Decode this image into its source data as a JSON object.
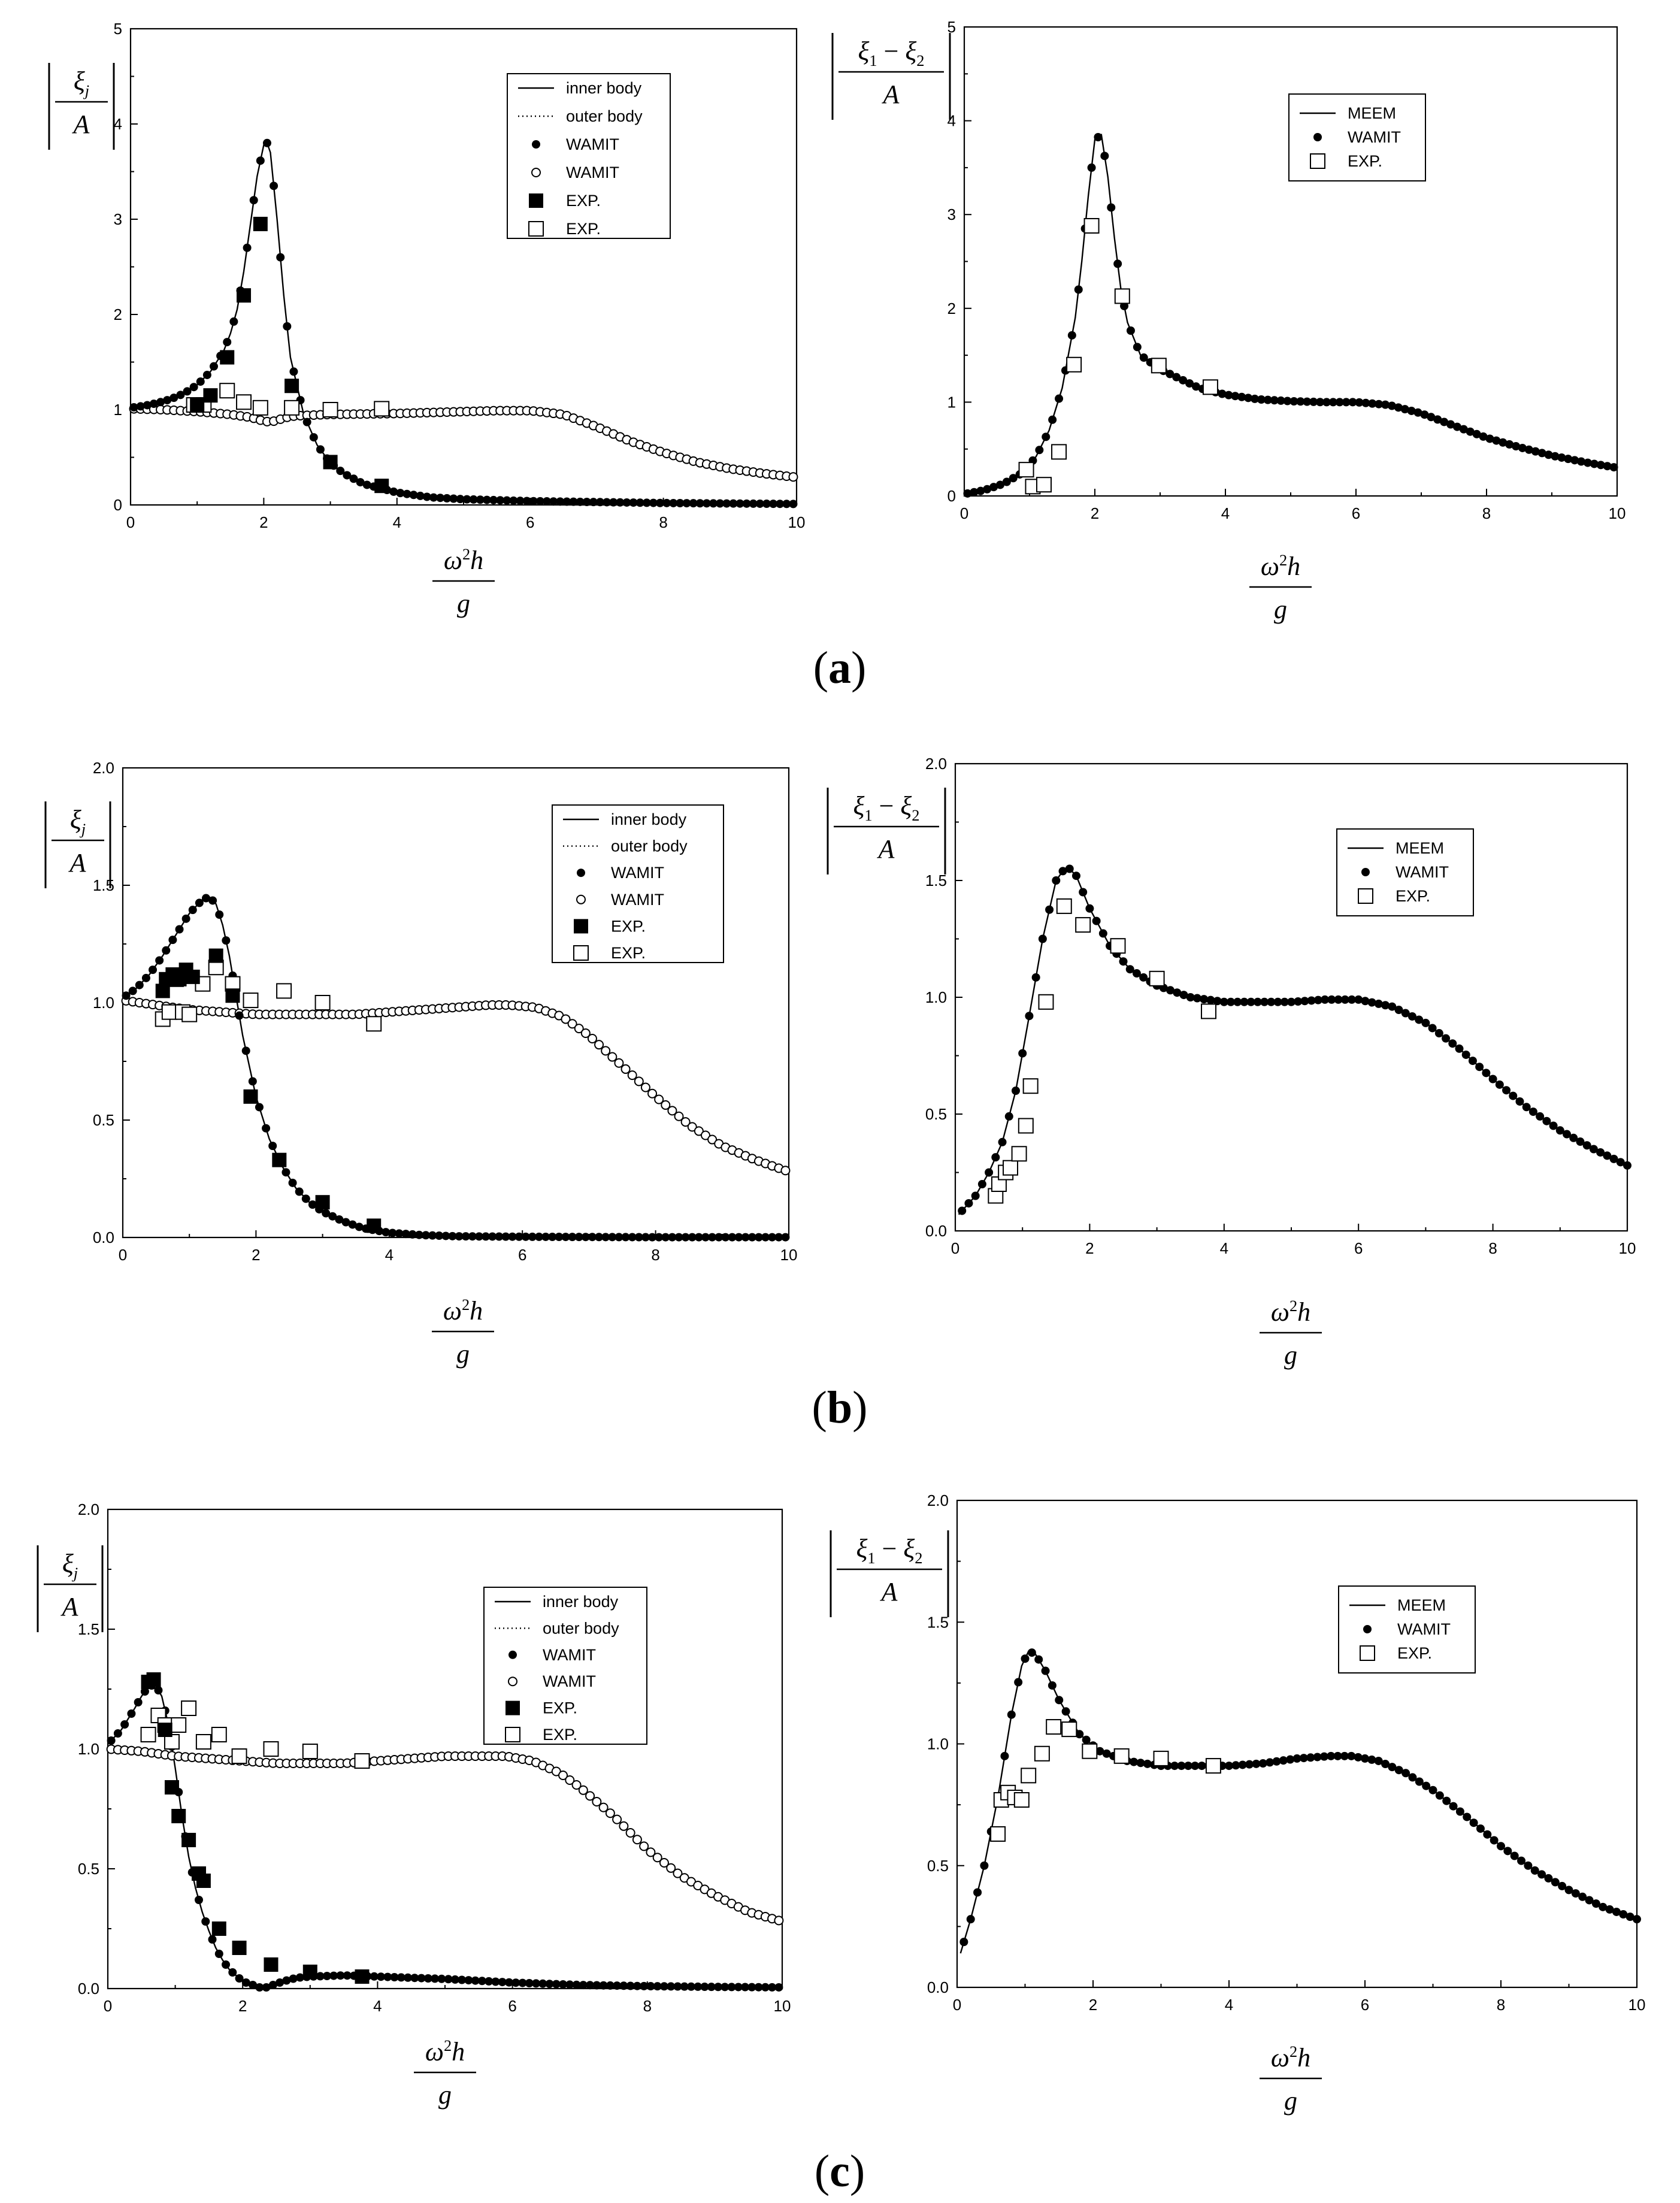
{
  "panel_captions": [
    {
      "open": "(",
      "letter": "a",
      "close": ")"
    },
    {
      "open": "(",
      "letter": "b",
      "close": ")"
    },
    {
      "open": "(",
      "letter": "c",
      "close": ")"
    }
  ],
  "symbols": {
    "xi": "ξ",
    "j": "j",
    "A": "A",
    "omega": "ω",
    "sq": "2",
    "h": "h",
    "g": "g",
    "sub1": "1",
    "sub2": "2",
    "minus": "−"
  },
  "legend_styles": {
    "inner_line": "solid-line",
    "outer_line": "dotted-line",
    "wamit_inner": "filled-circle",
    "wamit_outer": "open-circle",
    "exp_inner": "filled-square",
    "exp_outer": "open-square",
    "meem": "solid-line",
    "wamit": "filled-circle",
    "exp": "open-square"
  },
  "colors": {
    "ink": "#000000",
    "background": "#ffffff"
  },
  "chart_data": [
    {
      "id": "a-left",
      "type": "line",
      "panel": "a",
      "ylabel": "|ξj/A|",
      "xlabel": "ω²h/g",
      "xlim": [
        0,
        10
      ],
      "ylim": [
        0,
        5
      ],
      "xticks": [
        0,
        2,
        4,
        6,
        8,
        10
      ],
      "xtick_labels": [
        "0",
        "2",
        "4",
        "6",
        "8",
        "10"
      ],
      "yticks": [
        0,
        1,
        2,
        3,
        4,
        5
      ],
      "ytick_labels": [
        "0",
        "1",
        "2",
        "3",
        "4",
        "5"
      ],
      "legend": [
        "inner body",
        "outer body",
        "WAMIT",
        "WAMIT",
        "EXP.",
        "EXP."
      ],
      "inner_curve": {
        "x": [
          0,
          0.2,
          0.4,
          0.6,
          0.8,
          1.0,
          1.2,
          1.4,
          1.5,
          1.6,
          1.7,
          1.8,
          1.9,
          2.0,
          2.05,
          2.1,
          2.2,
          2.3,
          2.4,
          2.6,
          2.8,
          3.0,
          3.2,
          3.5,
          4.0,
          4.5,
          5,
          6,
          7,
          8,
          9,
          10
        ],
        "y": [
          1.02,
          1.04,
          1.07,
          1.11,
          1.17,
          1.26,
          1.4,
          1.62,
          1.8,
          2.05,
          2.45,
          2.95,
          3.45,
          3.78,
          3.8,
          3.7,
          3.0,
          2.2,
          1.55,
          0.95,
          0.63,
          0.44,
          0.33,
          0.22,
          0.13,
          0.08,
          0.06,
          0.04,
          0.03,
          0.02,
          0.015,
          0.01
        ]
      },
      "outer_curve": {
        "x": [
          0,
          0.5,
          1.0,
          1.5,
          1.8,
          2.0,
          2.1,
          2.2,
          2.4,
          2.6,
          3,
          4,
          5,
          5.5,
          6,
          6.5,
          7,
          7.5,
          8,
          8.5,
          9,
          9.5,
          10
        ],
        "y": [
          1.01,
          1.0,
          0.98,
          0.95,
          0.92,
          0.88,
          0.87,
          0.89,
          0.93,
          0.94,
          0.95,
          0.96,
          0.98,
          0.99,
          0.99,
          0.95,
          0.82,
          0.67,
          0.55,
          0.45,
          0.38,
          0.33,
          0.29
        ]
      },
      "exp_inner": {
        "x": [
          1.0,
          1.2,
          1.45,
          1.7,
          1.95,
          2.42,
          3.0,
          3.77
        ],
        "y": [
          1.05,
          1.15,
          1.55,
          2.2,
          2.95,
          1.25,
          0.45,
          0.2
        ]
      },
      "exp_outer": {
        "x": [
          0.95,
          1.1,
          1.45,
          1.7,
          1.95,
          2.42,
          3.0,
          3.77
        ],
        "y": [
          1.05,
          1.05,
          1.2,
          1.08,
          1.02,
          1.02,
          1.0,
          1.01
        ]
      }
    },
    {
      "id": "a-right",
      "type": "line",
      "panel": "a",
      "ylabel": "|(ξ1 − ξ2)/A|",
      "xlabel": "ω²h/g",
      "xlim": [
        0,
        10
      ],
      "ylim": [
        0,
        5
      ],
      "xticks": [
        0,
        2,
        4,
        6,
        8,
        10
      ],
      "xtick_labels": [
        "0",
        "2",
        "4",
        "6",
        "8",
        "10"
      ],
      "yticks": [
        0,
        1,
        2,
        3,
        4,
        5
      ],
      "ytick_labels": [
        "0",
        "1",
        "2",
        "3",
        "4",
        "5"
      ],
      "legend": [
        "MEEM",
        "WAMIT",
        "EXP."
      ],
      "curve": {
        "x": [
          0,
          0.3,
          0.6,
          0.9,
          1.1,
          1.3,
          1.5,
          1.7,
          1.8,
          1.9,
          2.0,
          2.1,
          2.2,
          2.3,
          2.4,
          2.5,
          2.7,
          3.0,
          3.3,
          3.6,
          4.0,
          4.5,
          5,
          5.5,
          6,
          6.5,
          7,
          7.5,
          8,
          8.5,
          9,
          9.5,
          10
        ],
        "y": [
          0.02,
          0.06,
          0.13,
          0.25,
          0.42,
          0.7,
          1.15,
          1.9,
          2.5,
          3.2,
          3.8,
          3.85,
          3.4,
          2.75,
          2.2,
          1.85,
          1.5,
          1.35,
          1.25,
          1.15,
          1.08,
          1.03,
          1.01,
          1.0,
          1.0,
          0.97,
          0.88,
          0.75,
          0.62,
          0.52,
          0.43,
          0.36,
          0.3
        ]
      },
      "exp": {
        "x": [
          0.95,
          1.05,
          1.22,
          1.45,
          1.68,
          1.95,
          2.42,
          2.98,
          3.77
        ],
        "y": [
          0.28,
          0.1,
          0.12,
          0.47,
          1.4,
          2.88,
          2.13,
          1.39,
          1.16
        ]
      }
    },
    {
      "id": "b-left",
      "type": "line",
      "panel": "b",
      "ylabel": "|ξj/A|",
      "xlabel": "ω²h/g",
      "xlim": [
        0,
        10
      ],
      "ylim": [
        0,
        2
      ],
      "xticks": [
        0,
        2,
        4,
        6,
        8,
        10
      ],
      "xtick_labels": [
        "0",
        "2",
        "4",
        "6",
        "8",
        "10"
      ],
      "yticks": [
        0,
        0.5,
        1.0,
        1.5,
        2.0
      ],
      "ytick_labels": [
        "0.0",
        "0.5",
        "1.0",
        "1.5",
        "2.0"
      ],
      "legend": [
        "inner body",
        "outer body",
        "WAMIT",
        "WAMIT",
        "EXP.",
        "EXP."
      ],
      "inner_curve": {
        "x": [
          0,
          0.2,
          0.4,
          0.6,
          0.8,
          1.0,
          1.2,
          1.3,
          1.4,
          1.5,
          1.6,
          1.7,
          1.8,
          2.0,
          2.2,
          2.4,
          2.6,
          2.8,
          3.0,
          3.3,
          3.6,
          4.0,
          4.5,
          5,
          6,
          7,
          8,
          9,
          10
        ],
        "y": [
          1.02,
          1.06,
          1.12,
          1.2,
          1.29,
          1.38,
          1.44,
          1.45,
          1.42,
          1.33,
          1.2,
          1.03,
          0.86,
          0.6,
          0.42,
          0.3,
          0.21,
          0.15,
          0.11,
          0.07,
          0.04,
          0.02,
          0.01,
          0.005,
          0.003,
          0.002,
          0.001,
          0.001,
          0.001
        ]
      },
      "outer_curve": {
        "x": [
          0,
          0.5,
          1.0,
          1.5,
          2.0,
          2.5,
          3,
          3.5,
          4,
          4.5,
          5,
          5.5,
          5.8,
          6.2,
          6.6,
          7,
          7.5,
          8,
          8.5,
          9,
          9.5,
          10
        ],
        "y": [
          1.01,
          0.99,
          0.97,
          0.96,
          0.95,
          0.95,
          0.95,
          0.95,
          0.96,
          0.97,
          0.98,
          0.99,
          0.99,
          0.98,
          0.94,
          0.86,
          0.73,
          0.6,
          0.48,
          0.39,
          0.33,
          0.28
        ]
      },
      "exp_inner": {
        "x": [
          0.6,
          0.65,
          0.75,
          0.85,
          0.95,
          1.05,
          1.4,
          1.65,
          1.92,
          2.35,
          3.0,
          3.77
        ],
        "y": [
          1.05,
          1.1,
          1.12,
          1.1,
          1.14,
          1.11,
          1.2,
          1.03,
          0.6,
          0.33,
          0.15,
          0.05
        ]
      },
      "exp_outer": {
        "x": [
          0.6,
          0.7,
          0.8,
          0.9,
          1.0,
          1.2,
          1.4,
          1.65,
          1.92,
          2.42,
          3.0,
          3.77
        ],
        "y": [
          0.93,
          0.96,
          1.1,
          0.96,
          0.95,
          1.08,
          1.15,
          1.08,
          1.01,
          1.05,
          1.0,
          0.91
        ]
      }
    },
    {
      "id": "b-right",
      "type": "line",
      "panel": "b",
      "ylabel": "|(ξ1 − ξ2)/A|",
      "xlabel": "ω²h/g",
      "xlim": [
        0,
        10
      ],
      "ylim": [
        0,
        2
      ],
      "xticks": [
        0,
        2,
        4,
        6,
        8,
        10
      ],
      "xtick_labels": [
        "0",
        "2",
        "4",
        "6",
        "8",
        "10"
      ],
      "yticks": [
        0,
        0.5,
        1.0,
        1.5,
        2.0
      ],
      "ytick_labels": [
        "0.0",
        "0.5",
        "1.0",
        "1.5",
        "2.0"
      ],
      "legend": [
        "MEEM",
        "WAMIT",
        "EXP."
      ],
      "curve": {
        "x": [
          0.05,
          0.3,
          0.5,
          0.7,
          0.9,
          1.1,
          1.3,
          1.5,
          1.6,
          1.7,
          1.8,
          2.0,
          2.3,
          2.6,
          3.0,
          3.5,
          4.0,
          4.5,
          5.0,
          5.5,
          6.0,
          6.5,
          7,
          7.5,
          8,
          8.5,
          9,
          9.5,
          10
        ],
        "y": [
          0.07,
          0.15,
          0.25,
          0.38,
          0.6,
          0.92,
          1.25,
          1.5,
          1.54,
          1.55,
          1.52,
          1.38,
          1.22,
          1.12,
          1.05,
          1.0,
          0.98,
          0.98,
          0.98,
          0.99,
          0.99,
          0.96,
          0.89,
          0.78,
          0.65,
          0.53,
          0.43,
          0.35,
          0.28
        ]
      },
      "exp": {
        "x": [
          0.6,
          0.65,
          0.75,
          0.82,
          0.95,
          1.05,
          1.12,
          1.35,
          1.62,
          1.9,
          2.42,
          3.0,
          3.77
        ],
        "y": [
          0.15,
          0.2,
          0.25,
          0.27,
          0.33,
          0.45,
          0.62,
          0.98,
          1.39,
          1.31,
          1.22,
          1.08,
          0.94
        ]
      }
    },
    {
      "id": "c-left",
      "type": "line",
      "panel": "c",
      "ylabel": "|ξj/A|",
      "xlabel": "ω²h/g",
      "xlim": [
        0,
        10
      ],
      "ylim": [
        0,
        2
      ],
      "xticks": [
        0,
        2,
        4,
        6,
        8,
        10
      ],
      "xtick_labels": [
        "0",
        "2",
        "4",
        "6",
        "8",
        "10"
      ],
      "yticks": [
        0,
        0.5,
        1.0,
        1.5,
        2.0
      ],
      "ytick_labels": [
        "0.0",
        "0.5",
        "1.0",
        "1.5",
        "2.0"
      ],
      "legend": [
        "inner body",
        "outer body",
        "WAMIT",
        "WAMIT",
        "EXP.",
        "EXP."
      ],
      "inner_curve": {
        "x": [
          0,
          0.2,
          0.4,
          0.5,
          0.6,
          0.7,
          0.8,
          0.9,
          1.0,
          1.1,
          1.2,
          1.3,
          1.4,
          1.5,
          1.6,
          1.7,
          1.8,
          2.0,
          2.2,
          2.3,
          2.4,
          2.6,
          2.8,
          3.0,
          3.5,
          4.0,
          4.5,
          5,
          6,
          7,
          8,
          9,
          10
        ],
        "y": [
          1.02,
          1.08,
          1.17,
          1.22,
          1.26,
          1.27,
          1.22,
          1.1,
          0.92,
          0.72,
          0.55,
          0.42,
          0.32,
          0.24,
          0.17,
          0.12,
          0.08,
          0.03,
          0.01,
          0.0,
          0.01,
          0.03,
          0.045,
          0.05,
          0.055,
          0.05,
          0.045,
          0.04,
          0.025,
          0.015,
          0.01,
          0.007,
          0.005
        ]
      },
      "outer_curve": {
        "x": [
          0,
          0.5,
          1.0,
          1.5,
          2.0,
          2.5,
          3,
          3.5,
          4,
          4.5,
          5,
          5.5,
          5.9,
          6.3,
          6.7,
          7,
          7.5,
          8,
          8.5,
          9,
          9.5,
          10
        ],
        "y": [
          1.0,
          0.99,
          0.97,
          0.96,
          0.95,
          0.94,
          0.94,
          0.94,
          0.95,
          0.96,
          0.97,
          0.97,
          0.97,
          0.95,
          0.9,
          0.84,
          0.72,
          0.58,
          0.47,
          0.39,
          0.32,
          0.28
        ]
      },
      "exp_inner": {
        "x": [
          0.6,
          0.68,
          0.85,
          0.95,
          1.05,
          1.2,
          1.35,
          1.42,
          1.65,
          1.95,
          2.42,
          3.0,
          3.77
        ],
        "y": [
          1.28,
          1.29,
          1.08,
          0.84,
          0.72,
          0.62,
          0.48,
          0.45,
          0.25,
          0.17,
          0.1,
          0.07,
          0.05
        ]
      },
      "exp_outer": {
        "x": [
          0.6,
          0.75,
          0.85,
          0.95,
          1.05,
          1.2,
          1.42,
          1.65,
          1.95,
          2.42,
          3.0,
          3.77
        ],
        "y": [
          1.06,
          1.14,
          1.1,
          1.03,
          1.1,
          1.17,
          1.03,
          1.06,
          0.97,
          1.0,
          0.99,
          0.95
        ]
      }
    },
    {
      "id": "c-right",
      "type": "line",
      "panel": "c",
      "ylabel": "|(ξ1 − ξ2)/A|",
      "xlabel": "ω²h/g",
      "xlim": [
        0,
        10
      ],
      "ylim": [
        0,
        2
      ],
      "xticks": [
        0,
        2,
        4,
        6,
        8,
        10
      ],
      "xtick_labels": [
        "0",
        "2",
        "4",
        "6",
        "8",
        "10"
      ],
      "yticks": [
        0,
        0.5,
        1.0,
        1.5,
        2.0
      ],
      "ytick_labels": [
        "0.0",
        "0.5",
        "1.0",
        "1.5",
        "2.0"
      ],
      "legend": [
        "MEEM",
        "WAMIT",
        "EXP."
      ],
      "curve": {
        "x": [
          0.05,
          0.2,
          0.4,
          0.6,
          0.8,
          0.95,
          1.05,
          1.15,
          1.3,
          1.5,
          1.8,
          2.1,
          2.5,
          3.0,
          3.5,
          4.0,
          4.5,
          5.0,
          5.5,
          5.8,
          6.2,
          6.6,
          7,
          7.5,
          8,
          8.5,
          9,
          9.5,
          10
        ],
        "y": [
          0.14,
          0.28,
          0.5,
          0.78,
          1.12,
          1.32,
          1.38,
          1.37,
          1.3,
          1.18,
          1.04,
          0.97,
          0.93,
          0.91,
          0.91,
          0.91,
          0.92,
          0.94,
          0.95,
          0.95,
          0.93,
          0.88,
          0.81,
          0.7,
          0.58,
          0.48,
          0.4,
          0.33,
          0.28
        ]
      },
      "exp": {
        "x": [
          0.6,
          0.65,
          0.75,
          0.85,
          0.95,
          1.05,
          1.25,
          1.42,
          1.65,
          1.95,
          2.42,
          3.0,
          3.77
        ],
        "y": [
          0.63,
          0.77,
          0.8,
          0.78,
          0.77,
          0.87,
          0.96,
          1.07,
          1.06,
          0.97,
          0.95,
          0.94,
          0.91
        ]
      }
    }
  ]
}
